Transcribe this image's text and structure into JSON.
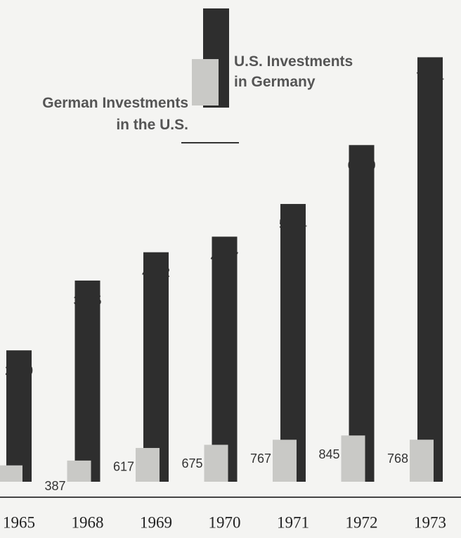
{
  "chart_data": {
    "type": "bar",
    "categories": [
      "1965",
      "1968",
      "1969",
      "1970",
      "1971",
      "1972",
      "1973"
    ],
    "series": [
      {
        "name": "U.S. Investments\nin Germany",
        "color": "#2e2e2e",
        "values": [
          2400,
          3675,
          4192,
          4477,
          5074,
          6150,
          7754
        ]
      },
      {
        "name": "German Investments\nin the U.S.",
        "color": "#c9c9c6",
        "values": [
          299,
          387,
          617,
          675,
          767,
          845,
          768
        ]
      }
    ],
    "ylim": [
      0,
      8800
    ]
  }
}
